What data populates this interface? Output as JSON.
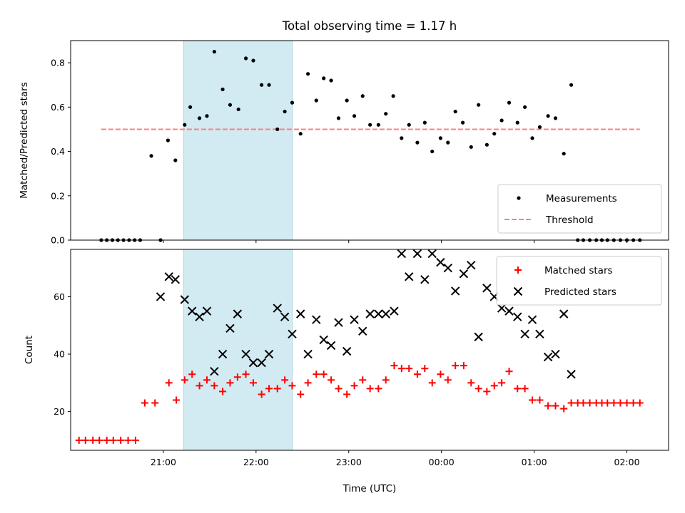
{
  "chart_data": [
    {
      "type": "scatter",
      "title": "Total observing time = 1.17 h",
      "ylabel": "Matched/Predicted stars",
      "xlabel": "",
      "xlim_hours": [
        20.0,
        26.45
      ],
      "ylim": [
        0,
        0.9
      ],
      "yticks": [
        "0.0",
        "0.2",
        "0.4",
        "0.6",
        "0.8"
      ],
      "xticks": [
        "21:00",
        "22:00",
        "23:00",
        "00:00",
        "01:00",
        "02:00"
      ],
      "highlight_span_hours": [
        21.22,
        22.39
      ],
      "highlight_color": "#add8e6",
      "legend_position": "lower right",
      "series": [
        {
          "name": "Measurements",
          "kind": "points",
          "color": "#000000",
          "x": [
            20.33,
            20.39,
            20.45,
            20.51,
            20.57,
            20.63,
            20.69,
            20.75,
            20.87,
            20.97,
            21.05,
            21.13,
            21.23,
            21.29,
            21.39,
            21.47,
            21.55,
            21.64,
            21.72,
            21.81,
            21.89,
            21.97,
            22.06,
            22.14,
            22.23,
            22.31,
            22.39,
            22.48,
            22.56,
            22.65,
            22.73,
            22.81,
            22.89,
            22.98,
            23.06,
            23.15,
            23.23,
            23.32,
            23.4,
            23.48,
            23.57,
            23.65,
            23.74,
            23.82,
            23.9,
            23.99,
            24.07,
            24.15,
            24.23,
            24.32,
            24.4,
            24.49,
            24.57,
            24.65,
            24.73,
            24.82,
            24.9,
            24.98,
            25.06,
            25.15,
            25.23,
            25.32,
            25.4,
            25.47,
            25.53,
            25.6,
            25.67,
            25.73,
            25.79,
            25.86,
            25.93,
            26.0,
            26.07,
            26.14
          ],
          "y": [
            0,
            0,
            0,
            0,
            0,
            0,
            0,
            0,
            0.38,
            0,
            0.45,
            0.36,
            0.52,
            0.6,
            0.55,
            0.56,
            0.85,
            0.68,
            0.61,
            0.59,
            0.82,
            0.81,
            0.7,
            0.7,
            0.5,
            0.58,
            0.62,
            0.48,
            0.75,
            0.63,
            0.73,
            0.72,
            0.55,
            0.63,
            0.56,
            0.65,
            0.52,
            0.52,
            0.57,
            0.65,
            0.46,
            0.52,
            0.44,
            0.53,
            0.4,
            0.46,
            0.44,
            0.58,
            0.53,
            0.42,
            0.61,
            0.43,
            0.48,
            0.54,
            0.62,
            0.53,
            0.6,
            0.46,
            0.51,
            0.56,
            0.55,
            0.39,
            0.7,
            0,
            0,
            0,
            0,
            0,
            0,
            0,
            0,
            0,
            0,
            0
          ]
        },
        {
          "name": "Threshold",
          "kind": "hline",
          "color": "#ff7f7f",
          "y": 0.5,
          "x_range": [
            20.33,
            26.14
          ]
        }
      ]
    },
    {
      "type": "scatter",
      "title": "",
      "xlabel": "Time (UTC)",
      "ylabel": "Count",
      "xlim_hours": [
        20.0,
        26.45
      ],
      "ylim": [
        6.5,
        76.5
      ],
      "yticks": [
        "20",
        "40",
        "60"
      ],
      "xticks": [
        "21:00",
        "22:00",
        "23:00",
        "00:00",
        "01:00",
        "02:00"
      ],
      "highlight_span_hours": [
        21.22,
        22.39
      ],
      "highlight_color": "#add8e6",
      "legend_position": "upper right",
      "series": [
        {
          "name": "Matched stars",
          "marker": "+",
          "color": "#ff0000",
          "x": [
            20.09,
            20.16,
            20.24,
            20.31,
            20.39,
            20.46,
            20.54,
            20.62,
            20.7,
            20.8,
            20.91,
            21.06,
            21.14,
            21.23,
            21.31,
            21.39,
            21.47,
            21.55,
            21.64,
            21.72,
            21.8,
            21.89,
            21.97,
            22.06,
            22.14,
            22.23,
            22.31,
            22.39,
            22.48,
            22.56,
            22.65,
            22.73,
            22.81,
            22.89,
            22.98,
            23.06,
            23.15,
            23.23,
            23.32,
            23.4,
            23.49,
            23.57,
            23.65,
            23.74,
            23.82,
            23.9,
            23.99,
            24.07,
            24.15,
            24.24,
            24.32,
            24.4,
            24.49,
            24.57,
            24.65,
            24.73,
            24.82,
            24.9,
            24.98,
            25.06,
            25.15,
            25.23,
            25.32,
            25.4,
            25.47,
            25.53,
            25.6,
            25.67,
            25.73,
            25.79,
            25.86,
            25.93,
            26.0,
            26.07,
            26.14
          ],
          "y": [
            10,
            10,
            10,
            10,
            10,
            10,
            10,
            10,
            10,
            23,
            23,
            30,
            24,
            31,
            33,
            29,
            31,
            29,
            27,
            30,
            32,
            33,
            30,
            26,
            28,
            28,
            31,
            29,
            26,
            30,
            33,
            33,
            31,
            28,
            26,
            29,
            31,
            28,
            28,
            31,
            36,
            35,
            35,
            33,
            35,
            30,
            33,
            31,
            36,
            36,
            30,
            28,
            27,
            29,
            30,
            34,
            28,
            28,
            24,
            24,
            22,
            22,
            21,
            23,
            23,
            23,
            23,
            23,
            23,
            23,
            23,
            23,
            23,
            23,
            23
          ]
        },
        {
          "name": "Predicted stars",
          "marker": "x",
          "color": "#000000",
          "x": [
            20.97,
            21.06,
            21.13,
            21.23,
            21.31,
            21.39,
            21.47,
            21.55,
            21.64,
            21.72,
            21.8,
            21.89,
            21.97,
            22.06,
            22.14,
            22.23,
            22.31,
            22.39,
            22.48,
            22.56,
            22.65,
            22.73,
            22.81,
            22.89,
            22.98,
            23.06,
            23.15,
            23.23,
            23.32,
            23.4,
            23.49,
            23.57,
            23.65,
            23.74,
            23.82,
            23.9,
            23.99,
            24.07,
            24.15,
            24.24,
            24.32,
            24.4,
            24.49,
            24.57,
            24.65,
            24.73,
            24.82,
            24.9,
            24.98,
            25.06,
            25.15,
            25.23,
            25.32,
            25.4
          ],
          "y": [
            60,
            67,
            66,
            59,
            55,
            53,
            55,
            34,
            40,
            49,
            54,
            40,
            37,
            37,
            40,
            56,
            53,
            47,
            54,
            40,
            52,
            45,
            43,
            51,
            41,
            52,
            48,
            54,
            54,
            54,
            55,
            75,
            67,
            75,
            66,
            75,
            72,
            70,
            62,
            68,
            71,
            46,
            63,
            60,
            56,
            55,
            53,
            47,
            52,
            47,
            39,
            40,
            54,
            33
          ]
        }
      ]
    }
  ]
}
